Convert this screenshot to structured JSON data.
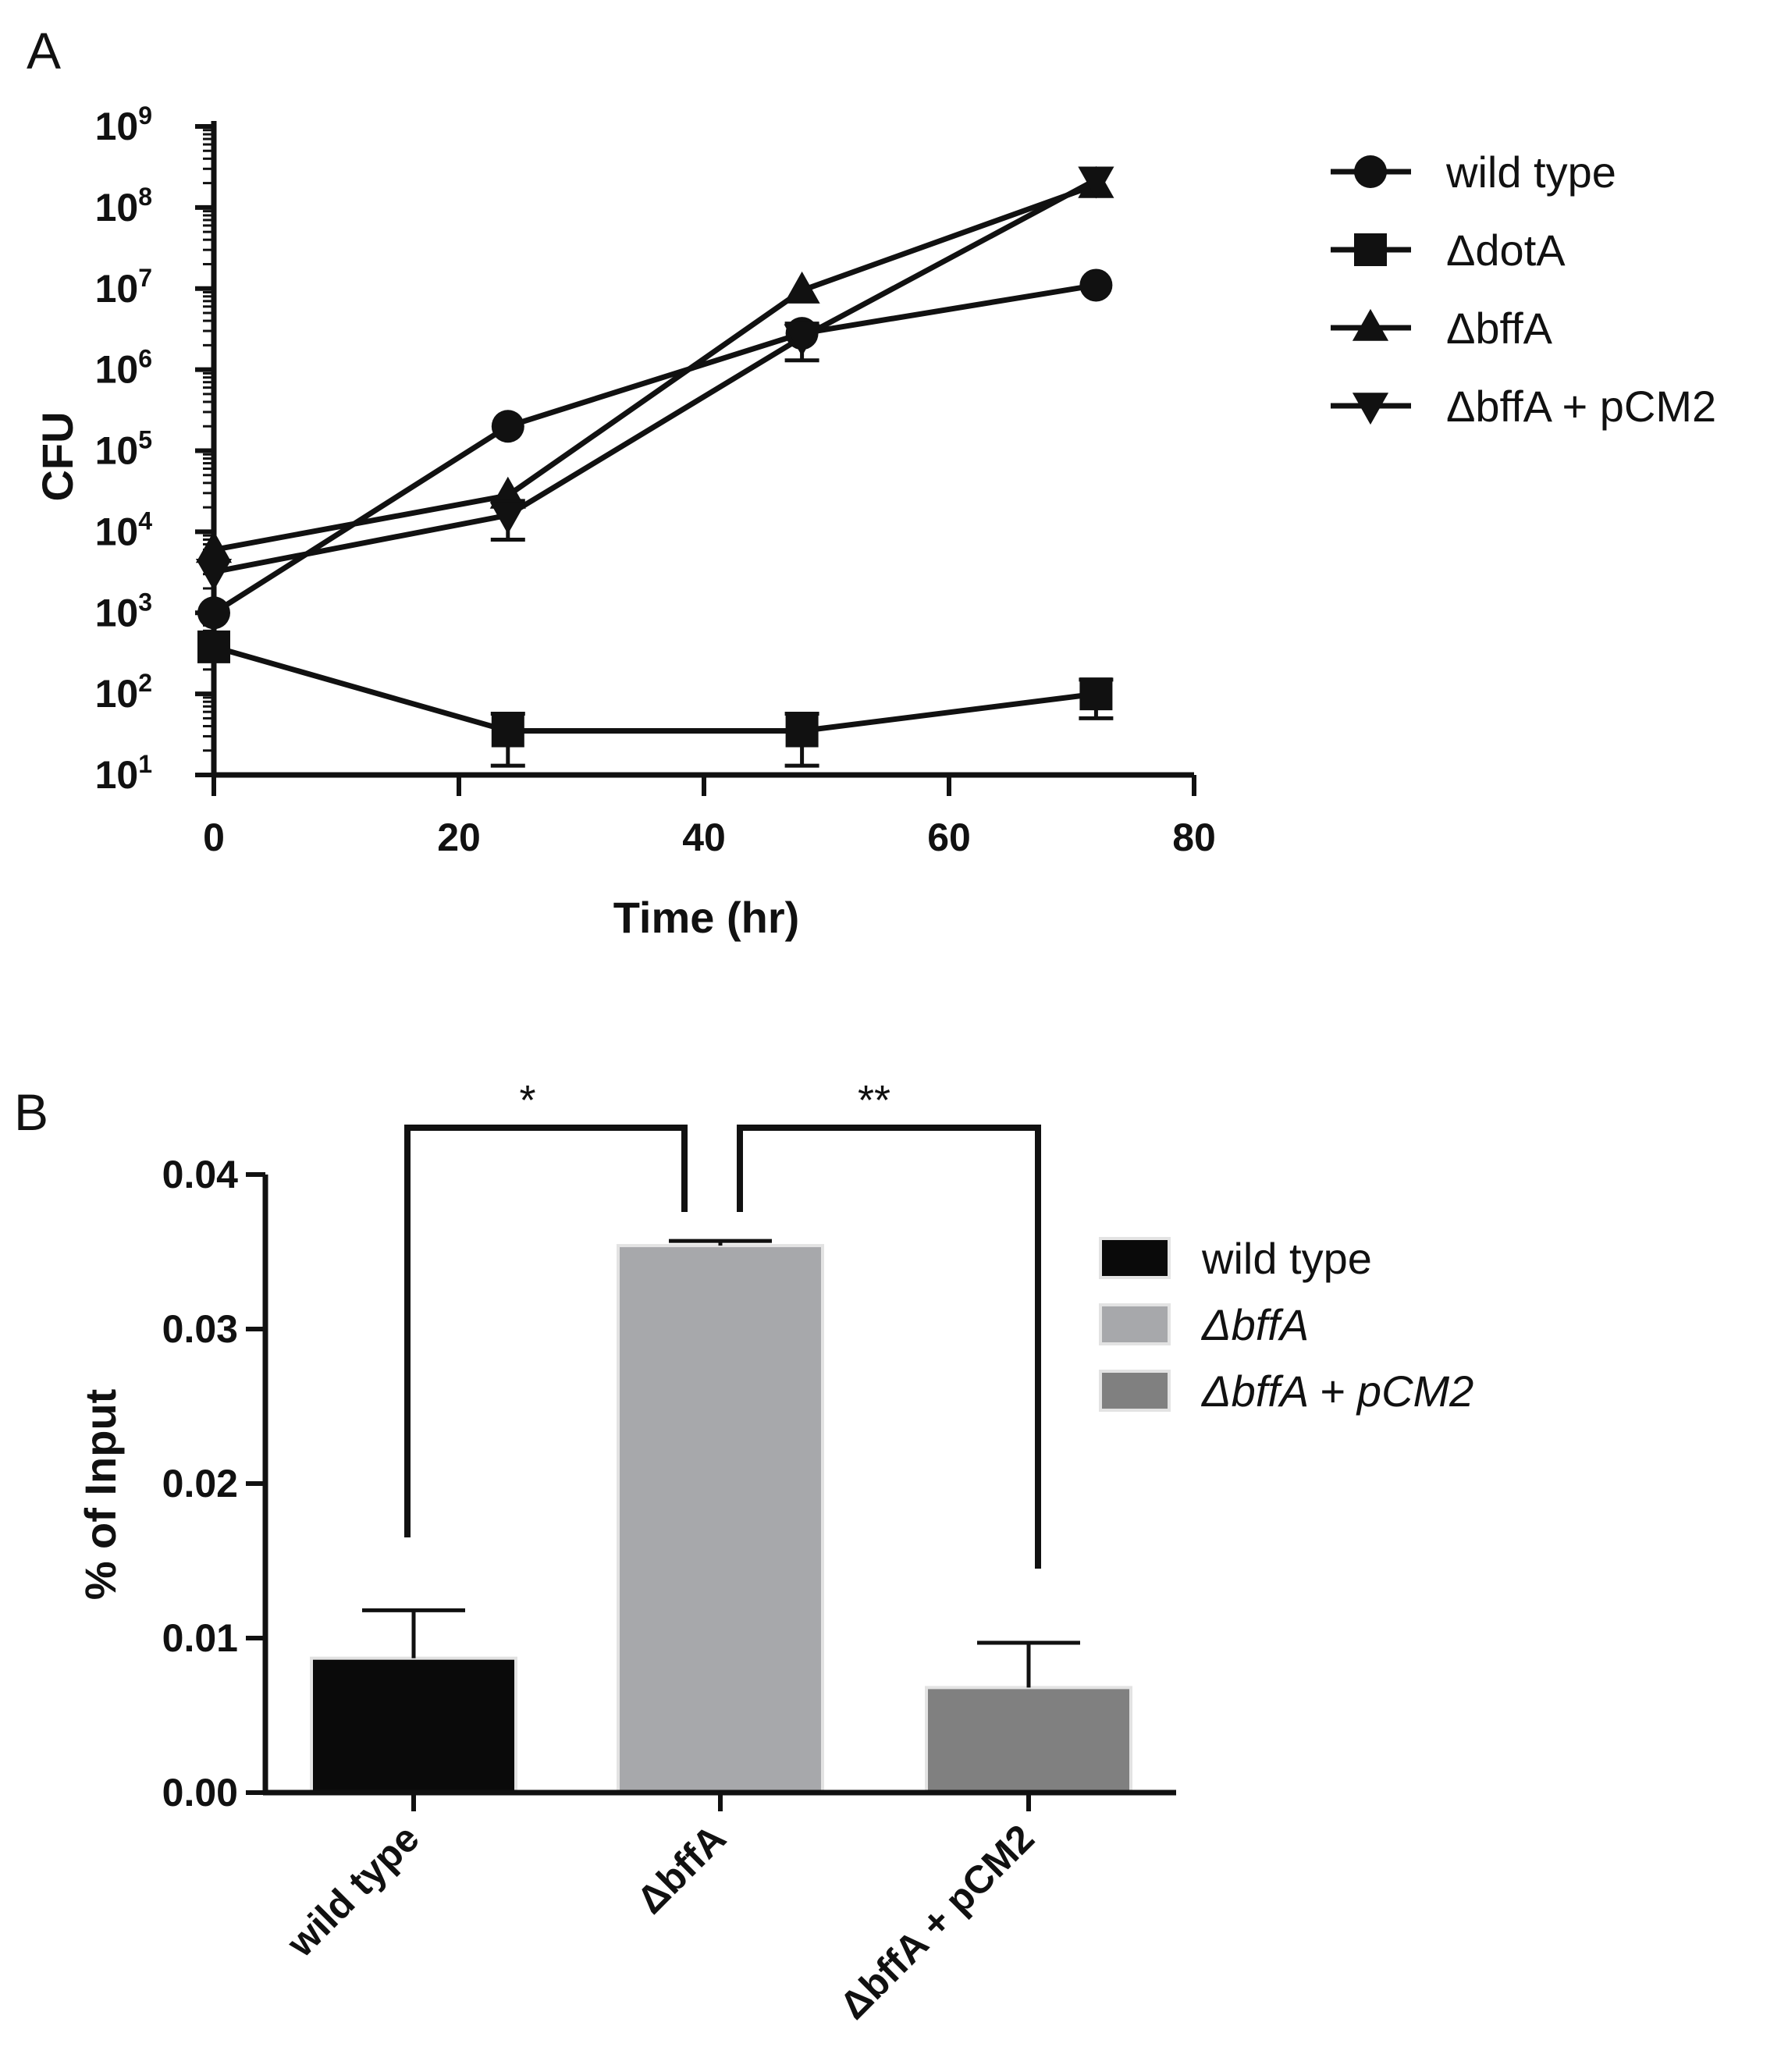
{
  "chart_data": [
    {
      "panel": "A",
      "type": "line",
      "xlabel": "Time (hr)",
      "ylabel": "CFU",
      "xlim": [
        0,
        80
      ],
      "ylim": [
        10,
        1000000000
      ],
      "yscale": "log",
      "x_ticks": [
        0,
        20,
        40,
        60,
        80
      ],
      "x_tick_labels": [
        "0",
        "20",
        "40",
        "60",
        "80"
      ],
      "y_ticks": [
        10,
        100,
        1000,
        10000,
        100000,
        1000000,
        10000000,
        100000000,
        1000000000
      ],
      "y_tick_bases": [
        "10",
        "10",
        "10",
        "10",
        "10",
        "10",
        "10",
        "10",
        "10"
      ],
      "y_tick_exponents": [
        "1",
        "2",
        "3",
        "4",
        "5",
        "6",
        "7",
        "8",
        "9"
      ],
      "legend_position": "right",
      "series": [
        {
          "name": "wild type",
          "marker": "circle",
          "x": [
            0,
            24,
            48,
            72
          ],
          "y": [
            1000,
            200000,
            2800000,
            11000000
          ],
          "err": [
            0,
            0,
            0,
            0
          ]
        },
        {
          "name": "ΔdotA",
          "marker": "square",
          "x": [
            0,
            24,
            48,
            72
          ],
          "y": [
            380,
            35,
            35,
            100
          ],
          "err": [
            0,
            22,
            22,
            50
          ]
        },
        {
          "name": "ΔbffA",
          "marker": "triangle-up",
          "x": [
            0,
            24,
            48,
            72
          ],
          "y": [
            6000,
            28000,
            9500000,
            190000000
          ],
          "err": [
            0,
            0,
            0,
            0
          ]
        },
        {
          "name": "ΔbffA + pCM2",
          "marker": "triangle-down",
          "x": [
            0,
            24,
            48,
            72
          ],
          "y": [
            3200,
            16000,
            2500000,
            220000000
          ],
          "err": [
            0,
            8000,
            1200000,
            0
          ]
        }
      ]
    },
    {
      "panel": "B",
      "type": "bar",
      "ylabel": "% of Input",
      "ylim": [
        0,
        0.04
      ],
      "y_ticks": [
        0,
        0.01,
        0.02,
        0.03,
        0.04
      ],
      "y_tick_labels": [
        "0.00",
        "0.01",
        "0.02",
        "0.03",
        "0.04"
      ],
      "categories": [
        "wild type",
        "ΔbffA",
        "ΔbffA + pCM2"
      ],
      "values": [
        0.0087,
        0.0354,
        0.0068
      ],
      "errors": [
        0.0031,
        0.0003,
        0.0029
      ],
      "colors": [
        "#0a0a0a",
        "#a7a8ab",
        "#808080"
      ],
      "legend": [
        {
          "label": "wild type",
          "italic": false,
          "color": "#0a0a0a"
        },
        {
          "label": "ΔbffA",
          "italic": true,
          "color": "#a7a8ab"
        },
        {
          "label": "ΔbffA + pCM2",
          "italic": true,
          "color": "#808080"
        }
      ],
      "legend_position": "right",
      "significance": [
        {
          "from": "wild type",
          "to": "ΔbffA",
          "label": "*"
        },
        {
          "from": "ΔbffA",
          "to": "ΔbffA + pCM2",
          "label": "**"
        }
      ]
    }
  ],
  "panel_labels": {
    "a": "A",
    "b": "B"
  }
}
